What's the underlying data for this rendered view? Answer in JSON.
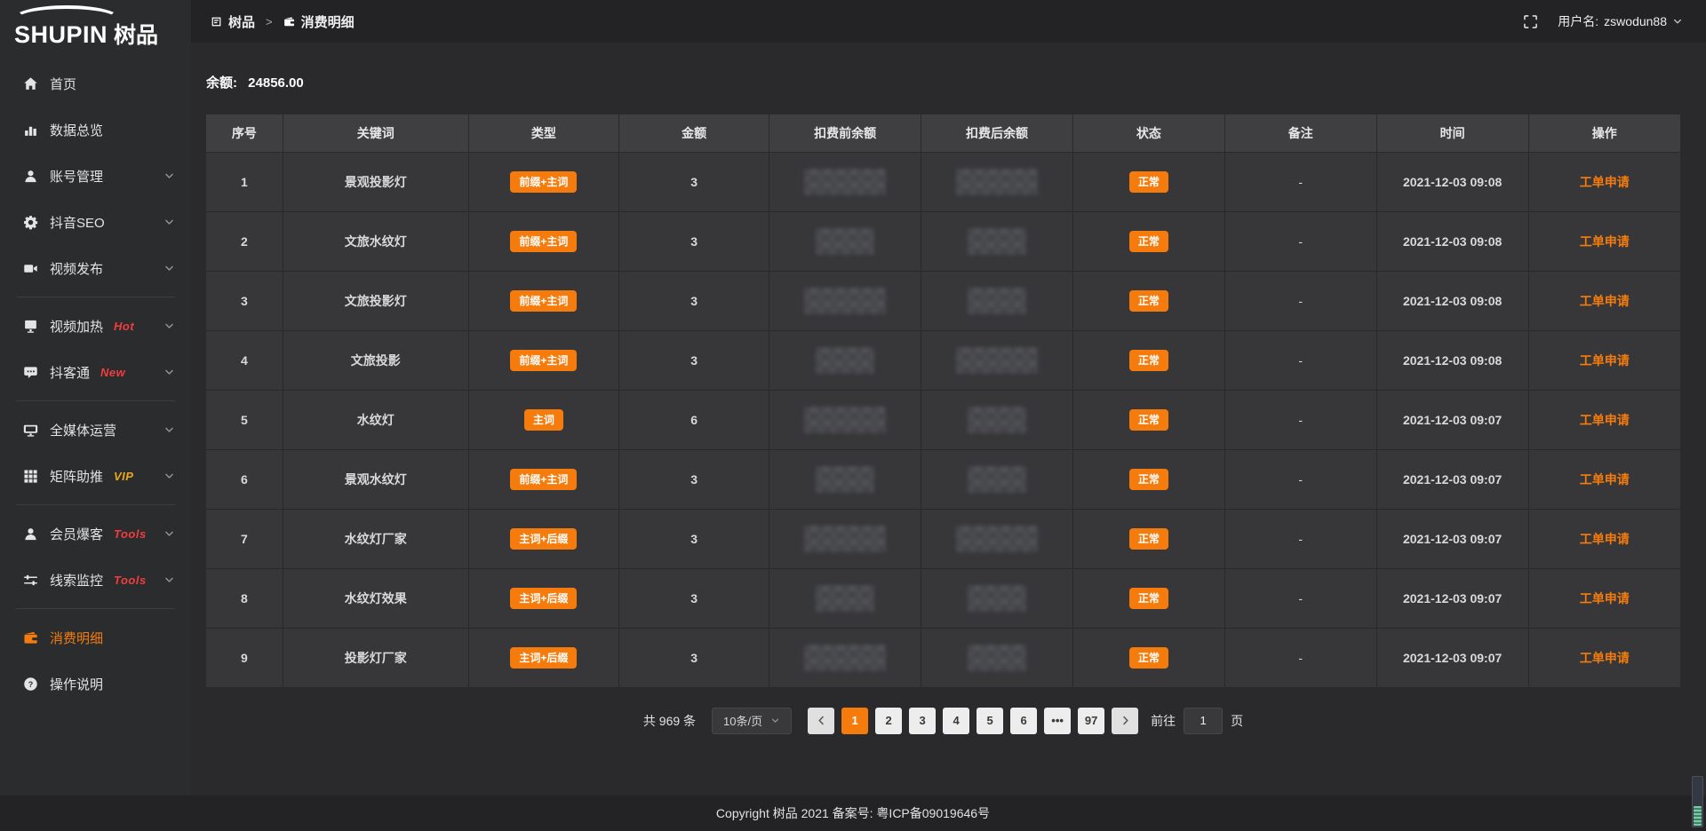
{
  "colors": {
    "accent": "#f57c0c",
    "badge_red": "#f23d3d",
    "badge_gold": "#e8a91c"
  },
  "sidebar": {
    "logo": {
      "brand_en": "SHUPIN",
      "brand_cn": "树品"
    },
    "items": [
      {
        "id": "home",
        "icon": "home-icon",
        "label": "首页"
      },
      {
        "id": "data-overview",
        "icon": "chart-icon",
        "label": "数据总览"
      },
      {
        "id": "account-manage",
        "icon": "user-icon",
        "label": "账号管理",
        "chevron": true
      },
      {
        "id": "douyin-seo",
        "icon": "gear-icon",
        "label": "抖音SEO",
        "chevron": true
      },
      {
        "id": "video-publish",
        "icon": "video-icon",
        "label": "视频发布",
        "chevron": true
      },
      {
        "divider": true
      },
      {
        "id": "video-heat",
        "icon": "screen-icon",
        "label": "视频加热",
        "badge": "Hot",
        "badge_color": "#f23d3d",
        "chevron": true
      },
      {
        "id": "douketong",
        "icon": "chat-icon",
        "label": "抖客通",
        "badge": "New",
        "badge_color": "#f23d3d",
        "chevron": true
      },
      {
        "divider": true
      },
      {
        "id": "media-operation",
        "icon": "monitor-icon",
        "label": "全媒体运营",
        "chevron": true
      },
      {
        "id": "matrix-boost",
        "icon": "grid-icon",
        "label": "矩阵助推",
        "badge": "VIP",
        "badge_color": "#e8a91c",
        "chevron": true
      },
      {
        "divider": true
      },
      {
        "id": "member-burst",
        "icon": "member-icon",
        "label": "会员爆客",
        "badge": "Tools",
        "badge_color": "#f23d3d",
        "chevron": true
      },
      {
        "id": "clue-monitor",
        "icon": "sliders-icon",
        "label": "线索监控",
        "badge": "Tools",
        "badge_color": "#f23d3d",
        "chevron": true
      },
      {
        "divider": true
      },
      {
        "id": "consume-detail",
        "icon": "wallet-icon",
        "label": "消费明细",
        "active": true
      },
      {
        "id": "operation-guide",
        "icon": "question-icon",
        "label": "操作说明"
      }
    ]
  },
  "topbar": {
    "breadcrumb": [
      "树品",
      "消费明细"
    ],
    "username_label": "用户名:",
    "username": "zswodun88"
  },
  "main": {
    "balance_label": "余额:",
    "balance_value": "24856.00",
    "table": {
      "columns": [
        "序号",
        "关键词",
        "类型",
        "金额",
        "扣费前余额",
        "扣费后余额",
        "状态",
        "备注",
        "时间",
        "操作"
      ],
      "rows": [
        {
          "no": "1",
          "keyword": "景观投影灯",
          "type": "前缀+主词",
          "amount": "3",
          "status": "正常",
          "remark": "-",
          "time": "2021-12-03 09:08",
          "action": "工单申请"
        },
        {
          "no": "2",
          "keyword": "文旅水纹灯",
          "type": "前缀+主词",
          "amount": "3",
          "status": "正常",
          "remark": "-",
          "time": "2021-12-03 09:08",
          "action": "工单申请"
        },
        {
          "no": "3",
          "keyword": "文旅投影灯",
          "type": "前缀+主词",
          "amount": "3",
          "status": "正常",
          "remark": "-",
          "time": "2021-12-03 09:08",
          "action": "工单申请"
        },
        {
          "no": "4",
          "keyword": "文旅投影",
          "type": "前缀+主词",
          "amount": "3",
          "status": "正常",
          "remark": "-",
          "time": "2021-12-03 09:08",
          "action": "工单申请"
        },
        {
          "no": "5",
          "keyword": "水纹灯",
          "type": "主词",
          "amount": "6",
          "status": "正常",
          "remark": "-",
          "time": "2021-12-03 09:07",
          "action": "工单申请"
        },
        {
          "no": "6",
          "keyword": "景观水纹灯",
          "type": "前缀+主词",
          "amount": "3",
          "status": "正常",
          "remark": "-",
          "time": "2021-12-03 09:07",
          "action": "工单申请"
        },
        {
          "no": "7",
          "keyword": "水纹灯厂家",
          "type": "主词+后缀",
          "amount": "3",
          "status": "正常",
          "remark": "-",
          "time": "2021-12-03 09:07",
          "action": "工单申请"
        },
        {
          "no": "8",
          "keyword": "水纹灯效果",
          "type": "主词+后缀",
          "amount": "3",
          "status": "正常",
          "remark": "-",
          "time": "2021-12-03 09:07",
          "action": "工单申请"
        },
        {
          "no": "9",
          "keyword": "投影灯厂家",
          "type": "主词+后缀",
          "amount": "3",
          "status": "正常",
          "remark": "-",
          "time": "2021-12-03 09:07",
          "action": "工单申请"
        }
      ]
    },
    "pagination": {
      "total": "共 969 条",
      "page_size": "10条/页",
      "pages": [
        {
          "label": "1",
          "active": true
        },
        {
          "label": "2"
        },
        {
          "label": "3"
        },
        {
          "label": "4"
        },
        {
          "label": "5"
        },
        {
          "label": "6"
        },
        {
          "label": "•••",
          "ellipsis": true
        },
        {
          "label": "97"
        }
      ],
      "goto_label": "前往",
      "goto_value": "1",
      "goto_suffix": "页"
    }
  },
  "footer": {
    "copyright": "Copyright 树品 2021 备案号: 粤ICP备09019646号"
  }
}
